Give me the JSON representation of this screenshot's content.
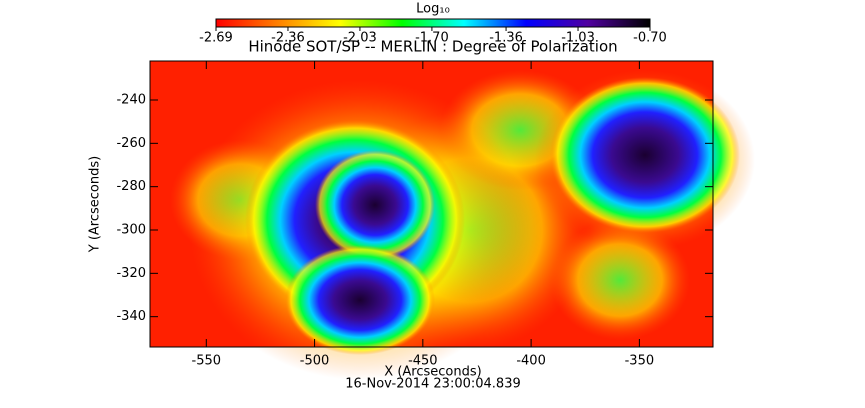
{
  "chart_data": {
    "type": "heatmap",
    "title": "Hinode SOT/SP -- MERLIN : Degree of Polarization",
    "colorbar_label": "Log₁₀",
    "clim": [
      -2.69,
      -0.7
    ],
    "cticks": [
      -2.69,
      -2.36,
      -2.03,
      {
        "value": -1.7,
        "label": "-1.70"
      },
      -1.36,
      -1.03,
      {
        "value": -0.7,
        "label": "-0.70"
      }
    ],
    "colormap": [
      "#ff0000",
      "#ff8000",
      "#ffff00",
      "#00ff00",
      "#00ffff",
      "#0000ff",
      "#5000a0",
      "#000000"
    ],
    "x_label": "X (Arcseconds)",
    "y_label": "Y (Arcseconds)",
    "xlim": [
      -576,
      -316
    ],
    "ylim": [
      -354,
      -222
    ],
    "xticks": [
      -550,
      -500,
      -450,
      -400,
      -350
    ],
    "yticks": [
      -240,
      -260,
      -280,
      -300,
      -320,
      -340
    ],
    "date": "16-Nov-2014 23:00:04.839"
  }
}
